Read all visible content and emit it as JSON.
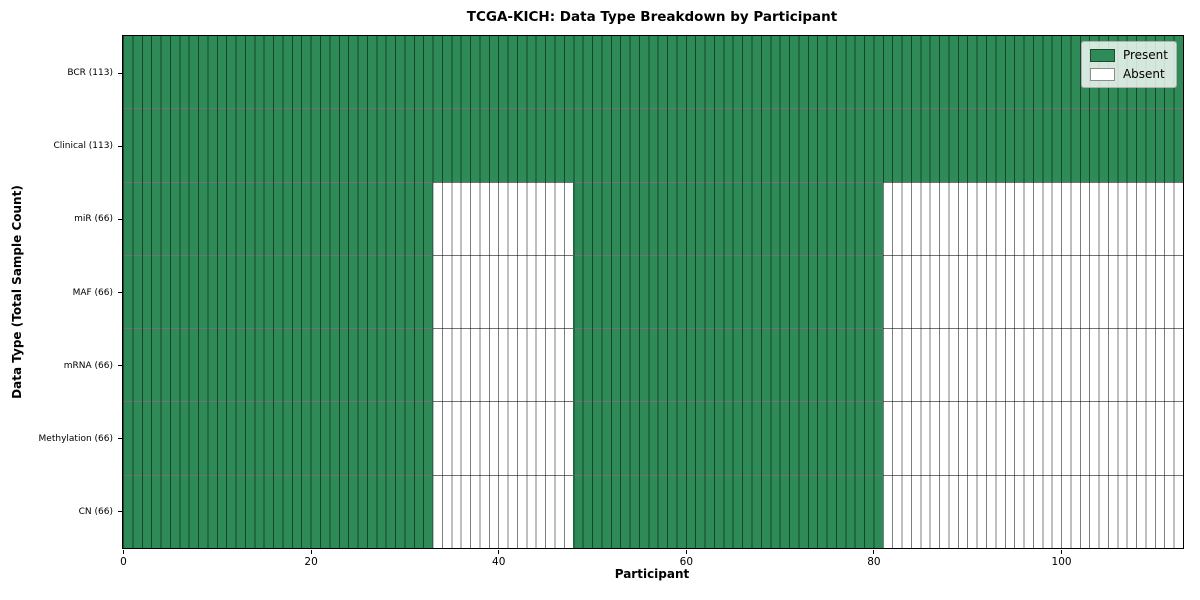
{
  "colors": {
    "present": "#2e8b57",
    "absent": "#ffffff",
    "grid": "rgba(0,0,0,0.5)"
  },
  "chart_data": {
    "type": "heatmap",
    "title": "TCGA-KICH: Data Type Breakdown by Participant",
    "xlabel": "Participant",
    "ylabel": "Data Type (Total Sample Count)",
    "x_ticks": [
      0,
      20,
      40,
      60,
      80,
      100
    ],
    "xlim": [
      0,
      113
    ],
    "n_participants": 113,
    "grid": true,
    "legend_position": "upper right",
    "legend": [
      {
        "label": "Present",
        "color": "#2e8b57"
      },
      {
        "label": "Absent",
        "color": "#ffffff"
      }
    ],
    "rows": [
      {
        "label": "BCR (113)",
        "name": "BCR",
        "present_count": 113,
        "segments": [
          {
            "state": "present",
            "start": 0,
            "end": 113
          }
        ]
      },
      {
        "label": "Clinical (113)",
        "name": "Clinical",
        "present_count": 113,
        "segments": [
          {
            "state": "present",
            "start": 0,
            "end": 113
          }
        ]
      },
      {
        "label": "miR (66)",
        "name": "miR",
        "present_count": 66,
        "segments": [
          {
            "state": "present",
            "start": 0,
            "end": 33
          },
          {
            "state": "absent",
            "start": 33,
            "end": 48
          },
          {
            "state": "present",
            "start": 48,
            "end": 81
          },
          {
            "state": "absent",
            "start": 81,
            "end": 113
          }
        ]
      },
      {
        "label": "MAF (66)",
        "name": "MAF",
        "present_count": 66,
        "segments": [
          {
            "state": "present",
            "start": 0,
            "end": 33
          },
          {
            "state": "absent",
            "start": 33,
            "end": 48
          },
          {
            "state": "present",
            "start": 48,
            "end": 81
          },
          {
            "state": "absent",
            "start": 81,
            "end": 113
          }
        ]
      },
      {
        "label": "mRNA (66)",
        "name": "mRNA",
        "present_count": 66,
        "segments": [
          {
            "state": "present",
            "start": 0,
            "end": 33
          },
          {
            "state": "absent",
            "start": 33,
            "end": 48
          },
          {
            "state": "present",
            "start": 48,
            "end": 81
          },
          {
            "state": "absent",
            "start": 81,
            "end": 113
          }
        ]
      },
      {
        "label": "Methylation (66)",
        "name": "Methylation",
        "present_count": 66,
        "segments": [
          {
            "state": "present",
            "start": 0,
            "end": 33
          },
          {
            "state": "absent",
            "start": 33,
            "end": 48
          },
          {
            "state": "present",
            "start": 48,
            "end": 81
          },
          {
            "state": "absent",
            "start": 81,
            "end": 113
          }
        ]
      },
      {
        "label": "CN (66)",
        "name": "CN",
        "present_count": 66,
        "segments": [
          {
            "state": "present",
            "start": 0,
            "end": 33
          },
          {
            "state": "absent",
            "start": 33,
            "end": 48
          },
          {
            "state": "present",
            "start": 48,
            "end": 81
          },
          {
            "state": "absent",
            "start": 81,
            "end": 113
          }
        ]
      }
    ]
  }
}
